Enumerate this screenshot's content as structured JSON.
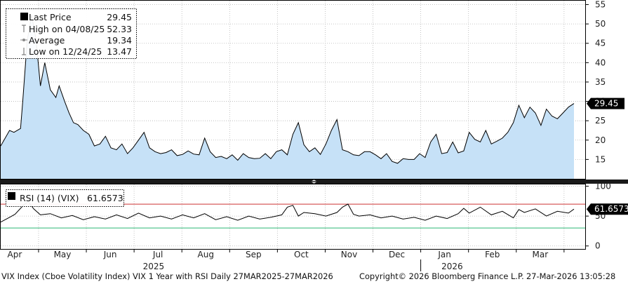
{
  "chart_data": [
    {
      "type": "area",
      "series_name": "VIX Index",
      "ylim": [
        10,
        56
      ],
      "yticks": [
        15,
        20,
        25,
        30,
        35,
        40,
        45,
        50,
        55
      ],
      "last_label": "29.45",
      "legend": [
        {
          "label": "Last Price",
          "value": "29.45",
          "symbol": "square"
        },
        {
          "label": "High on 04/08/25",
          "value": "52.33",
          "symbol": "high"
        },
        {
          "label": "Average",
          "value": "19.34",
          "symbol": "avg"
        },
        {
          "label": "Low on 12/24/25",
          "value": "13.47",
          "symbol": "low"
        }
      ],
      "x": [
        0,
        0.8,
        1.2,
        1.8,
        2,
        2.4,
        2.8,
        3.2,
        3.6,
        4,
        4.5,
        5,
        5.3,
        5.8,
        6.2,
        6.6,
        7,
        7.5,
        8,
        8.5,
        9,
        9.5,
        10,
        10.5,
        11,
        11.5,
        12,
        12.5,
        13,
        13.5,
        14,
        14.5,
        15,
        15.5,
        16,
        16.5,
        17,
        17.5,
        18,
        18.5,
        19,
        19.5,
        20,
        20.5,
        21,
        21.5,
        22,
        22.5,
        23,
        23.5,
        24,
        24.5,
        25,
        25.5,
        26,
        26.5,
        27,
        27.5,
        28,
        28.5,
        29,
        29.5,
        30,
        30.5,
        31,
        31.5,
        32,
        32.5,
        33,
        33.5,
        34,
        34.5,
        35,
        35.5,
        36,
        36.5,
        37,
        37.5,
        38,
        38.5,
        39,
        39.5,
        40,
        40.5,
        41,
        41.5,
        42,
        42.5,
        43,
        43.5,
        44,
        44.5,
        45,
        45.5,
        46,
        46.5,
        47,
        47.5,
        48,
        48.5,
        49,
        49.5,
        50,
        50.5,
        51,
        51.5,
        52
      ],
      "values": [
        18.5,
        22.5,
        22,
        23,
        30,
        45.5,
        52.3,
        46,
        34,
        40,
        33,
        31,
        34,
        30,
        27,
        24.5,
        24,
        22.5,
        21.5,
        18.5,
        19,
        21,
        18,
        17.5,
        19,
        16.5,
        18,
        20,
        22,
        18,
        17,
        16.5,
        16.8,
        17.5,
        16,
        16.3,
        17.2,
        16.4,
        16.2,
        20.5,
        17,
        15.5,
        15.8,
        15.2,
        16.2,
        14.8,
        16.5,
        15.5,
        15.2,
        15.3,
        16.5,
        15.2,
        17,
        17.5,
        16.2,
        21.5,
        24.5,
        18.8,
        17,
        18,
        16.3,
        19,
        22.5,
        25.3,
        17.5,
        17,
        16.2,
        16,
        17,
        17,
        16.2,
        15.2,
        16.5,
        14.5,
        14,
        15.2,
        15,
        15,
        16.5,
        15.5,
        19.5,
        21.5,
        16.5,
        16.8,
        19.5,
        16.7,
        17.2,
        22,
        20.2,
        19.5,
        22.5,
        19,
        19.7,
        20.5,
        22,
        24.5,
        29,
        25.8,
        28.5,
        27,
        23.8,
        28,
        26.2,
        25.5,
        27,
        28.5,
        29.45
      ]
    },
    {
      "type": "line",
      "series_name": "RSI (14) (VIX)",
      "ylim": [
        -5,
        103
      ],
      "yticks": [
        0,
        50,
        100
      ],
      "reference_lines": [
        {
          "value": 70,
          "color": "#cc3333"
        },
        {
          "value": 30,
          "color": "#2bb673"
        }
      ],
      "last_label": "61.6573",
      "legend": [
        {
          "label": "RSI (14) (VIX)",
          "value": "61.6573",
          "symbol": "square"
        }
      ],
      "x": [
        0,
        0.8,
        1.3,
        2.1,
        2.5,
        3,
        3.6,
        4.5,
        5.5,
        6.5,
        7.5,
        8.5,
        9.5,
        10.5,
        11.5,
        12.5,
        13.5,
        14.5,
        15.5,
        16.5,
        17.5,
        18.5,
        19.5,
        20.5,
        21.5,
        22.5,
        23.5,
        24.5,
        25.5,
        26,
        26.5,
        27,
        27.5,
        28.5,
        29.5,
        30.5,
        31,
        31.5,
        32,
        32.5,
        33.5,
        34.5,
        35.5,
        36.5,
        37.5,
        38.5,
        39.5,
        40.5,
        41.5,
        42,
        42.5,
        43.5,
        44.5,
        45.5,
        46.5,
        47,
        47.5,
        48.5,
        49.5,
        50.5,
        51.5,
        52
      ],
      "values": [
        40,
        48,
        53,
        69,
        74,
        62,
        52,
        54,
        47,
        51,
        44,
        49,
        45,
        52,
        46,
        55,
        47,
        50,
        45,
        52,
        47,
        54,
        44,
        49,
        43,
        50,
        45,
        48,
        52,
        65,
        68,
        50,
        56,
        54,
        50,
        56,
        65,
        70,
        53,
        50,
        52,
        47,
        50,
        45,
        48,
        43,
        50,
        46,
        54,
        63,
        55,
        65,
        52,
        58,
        47,
        61,
        56,
        62,
        50,
        58,
        55,
        61.6573
      ]
    }
  ],
  "x_axis": {
    "months": [
      "Apr",
      "May",
      "Jun",
      "Jul",
      "Aug",
      "Sep",
      "Oct",
      "Nov",
      "Dec",
      "Jan",
      "Feb",
      "Mar"
    ],
    "years": [
      "2025",
      "2026"
    ]
  },
  "footer": {
    "title": "VIX Index (Cboe Volatility Index) VIX 1 Year with RSI Daily 27MAR2025-27MAR2026",
    "copyright": "Copyright© 2026 Bloomberg Finance L.P.",
    "timestamp": "27-Mar-2026 13:05:28"
  },
  "colors": {
    "area_fill": "#c6e1f7",
    "line": "#000000",
    "grid": "#b5b5b5",
    "panel_border": "#000000",
    "last_label_bg": "#000000",
    "last_label_text": "#ffffff",
    "rsi_upper": "#cc3333",
    "rsi_lower": "#2bb673"
  }
}
